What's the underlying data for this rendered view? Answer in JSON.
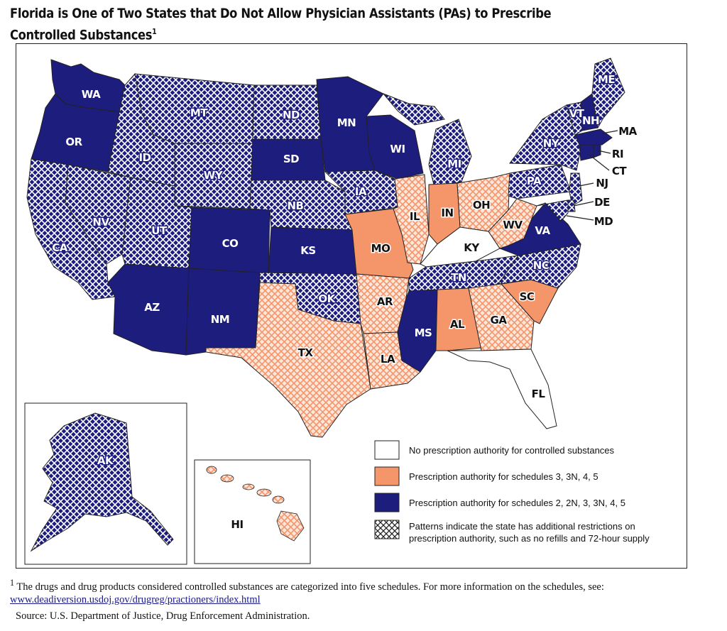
{
  "title": "Florida is One of Two States that Do Not Allow Physician Assistants (PAs) to Prescribe Controlled Substances",
  "title_footnote_mark": "1",
  "colors": {
    "none": "#ffffff",
    "partial": "#f4956a",
    "full": "#1d1d7e",
    "outline": "#222222"
  },
  "legend": [
    {
      "key": "none",
      "label": "No prescription authority for controlled substances"
    },
    {
      "key": "partial",
      "label": "Prescription authority for schedules 3, 3N, 4, 5"
    },
    {
      "key": "full",
      "label": "Prescription authority for schedules 2, 2N, 3, 3N, 4, 5"
    },
    {
      "key": "pattern",
      "label": "Patterns indicate the state has additional restrictions on prescription authority, such as no refills and 72-hour supply"
    }
  ],
  "states": [
    {
      "code": "WA",
      "category": "full",
      "pattern": false
    },
    {
      "code": "OR",
      "category": "full",
      "pattern": false
    },
    {
      "code": "CA",
      "category": "full",
      "pattern": true
    },
    {
      "code": "NV",
      "category": "full",
      "pattern": true
    },
    {
      "code": "ID",
      "category": "full",
      "pattern": true
    },
    {
      "code": "MT",
      "category": "full",
      "pattern": true
    },
    {
      "code": "WY",
      "category": "full",
      "pattern": true
    },
    {
      "code": "UT",
      "category": "full",
      "pattern": true
    },
    {
      "code": "CO",
      "category": "full",
      "pattern": false
    },
    {
      "code": "AZ",
      "category": "full",
      "pattern": false
    },
    {
      "code": "NM",
      "category": "full",
      "pattern": false
    },
    {
      "code": "ND",
      "category": "full",
      "pattern": true
    },
    {
      "code": "SD",
      "category": "full",
      "pattern": false
    },
    {
      "code": "NB",
      "category": "full",
      "pattern": true
    },
    {
      "code": "KS",
      "category": "full",
      "pattern": false
    },
    {
      "code": "OK",
      "category": "full",
      "pattern": true
    },
    {
      "code": "TX",
      "category": "partial",
      "pattern": true
    },
    {
      "code": "MN",
      "category": "full",
      "pattern": false
    },
    {
      "code": "IA",
      "category": "full",
      "pattern": true
    },
    {
      "code": "MO",
      "category": "partial",
      "pattern": false
    },
    {
      "code": "AR",
      "category": "partial",
      "pattern": true
    },
    {
      "code": "LA",
      "category": "partial",
      "pattern": true
    },
    {
      "code": "WI",
      "category": "full",
      "pattern": false
    },
    {
      "code": "IL",
      "category": "partial",
      "pattern": true
    },
    {
      "code": "MI",
      "category": "full",
      "pattern": true
    },
    {
      "code": "IN",
      "category": "partial",
      "pattern": false
    },
    {
      "code": "OH",
      "category": "partial",
      "pattern": true
    },
    {
      "code": "KY",
      "category": "none",
      "pattern": false
    },
    {
      "code": "TN",
      "category": "full",
      "pattern": true
    },
    {
      "code": "MS",
      "category": "full",
      "pattern": false
    },
    {
      "code": "AL",
      "category": "partial",
      "pattern": false
    },
    {
      "code": "GA",
      "category": "partial",
      "pattern": true
    },
    {
      "code": "FL",
      "category": "none",
      "pattern": false
    },
    {
      "code": "SC",
      "category": "partial",
      "pattern": false
    },
    {
      "code": "NC",
      "category": "full",
      "pattern": true
    },
    {
      "code": "VA",
      "category": "full",
      "pattern": false
    },
    {
      "code": "WV",
      "category": "partial",
      "pattern": true
    },
    {
      "code": "PA",
      "category": "full",
      "pattern": true
    },
    {
      "code": "NY",
      "category": "full",
      "pattern": true
    },
    {
      "code": "VT",
      "category": "full",
      "pattern": true
    },
    {
      "code": "NH",
      "category": "full",
      "pattern": false
    },
    {
      "code": "ME",
      "category": "full",
      "pattern": true
    },
    {
      "code": "MA",
      "category": "full",
      "pattern": false
    },
    {
      "code": "RI",
      "category": "full",
      "pattern": false
    },
    {
      "code": "CT",
      "category": "full",
      "pattern": false
    },
    {
      "code": "NJ",
      "category": "full",
      "pattern": true
    },
    {
      "code": "DE",
      "category": "full",
      "pattern": true
    },
    {
      "code": "MD",
      "category": "full",
      "pattern": true
    },
    {
      "code": "AK",
      "category": "full",
      "pattern": true
    },
    {
      "code": "HI",
      "category": "partial",
      "pattern": true
    }
  ],
  "footnote": {
    "mark": "1",
    "text": "The drugs and drug products considered controlled substances are categorized into five schedules. For more information on the schedules, see:",
    "link": "www.deadiversion.usdoj.gov/drugreg/practioners/index.html"
  },
  "source": "Source:  U.S. Department of Justice, Drug Enforcement Administration."
}
